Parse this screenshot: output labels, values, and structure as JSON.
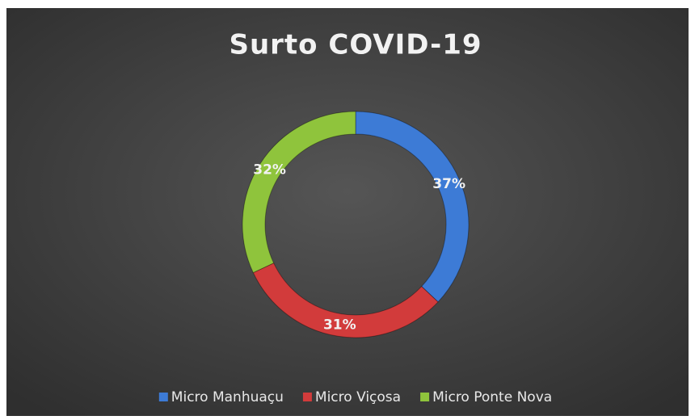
{
  "chart_data": {
    "type": "donut",
    "title": "Surto COVID-19",
    "categories": [
      "Micro Manhuaçu",
      "Micro Viçosa",
      "Micro Ponte Nova"
    ],
    "values": [
      37,
      31,
      32
    ],
    "value_labels": [
      "37%",
      "31%",
      "32%"
    ],
    "colors": [
      "#3d7bd6",
      "#d23b3b",
      "#8fc43c"
    ],
    "legend": "bottom"
  }
}
